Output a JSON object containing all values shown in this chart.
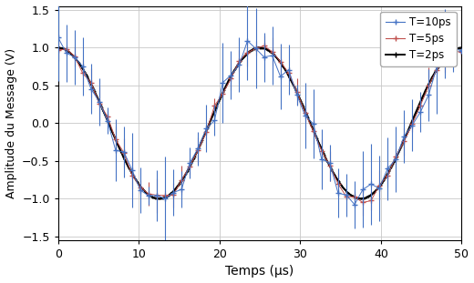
{
  "title": "",
  "xlabel": "Temps (μs)",
  "ylabel": "Amplitude du Message (V)",
  "xlim": [
    0,
    50
  ],
  "ylim": [
    -1.55,
    1.55
  ],
  "xticks": [
    0,
    10,
    20,
    30,
    40,
    50
  ],
  "yticks": [
    -1.5,
    -1.0,
    -0.5,
    0,
    0.5,
    1.0,
    1.5
  ],
  "period": 25,
  "amplitude": 1.0,
  "n_points_blue": 50,
  "n_points_red": 50,
  "n_points_black": 500,
  "noise_blue": 0.08,
  "noise_red": 0.04,
  "noise_black": 0.002,
  "errbar_blue": 0.3,
  "errbar_red": 0.12,
  "errbar_black": 0.015,
  "color_blue": "#4472c4",
  "color_red": "#c0504d",
  "color_black": "#000000",
  "label_blue": "T=10ps",
  "label_red": "T=5ps",
  "label_black": "T=2ps",
  "legend_loc": "upper right",
  "figsize": [
    5.2,
    3.11
  ],
  "dpi": 100
}
